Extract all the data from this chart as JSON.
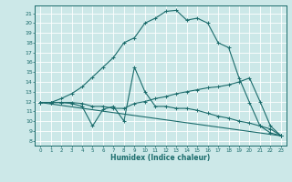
{
  "title": "",
  "xlabel": "Humidex (Indice chaleur)",
  "bg_color": "#cce8e8",
  "grid_color": "#ffffff",
  "line_color": "#1a6b6b",
  "xlim": [
    -0.5,
    23.5
  ],
  "ylim": [
    7.5,
    21.8
  ],
  "yticks": [
    8,
    9,
    10,
    11,
    12,
    13,
    14,
    15,
    16,
    17,
    18,
    19,
    20,
    21
  ],
  "xticks": [
    0,
    1,
    2,
    3,
    4,
    5,
    6,
    7,
    8,
    9,
    10,
    11,
    12,
    13,
    14,
    15,
    16,
    17,
    18,
    19,
    20,
    21,
    22,
    23
  ],
  "curve1_x": [
    0,
    1,
    2,
    3,
    4,
    5,
    6,
    7,
    8,
    9,
    10,
    11,
    12,
    13,
    14,
    15,
    16,
    17,
    18,
    19,
    20,
    21,
    22,
    23
  ],
  "curve1_y": [
    11.9,
    11.9,
    12.3,
    12.8,
    13.5,
    14.5,
    15.5,
    16.5,
    18.0,
    18.5,
    20.0,
    20.5,
    21.2,
    21.3,
    20.3,
    20.5,
    20.0,
    18.0,
    17.5,
    14.4,
    11.9,
    9.5,
    8.8,
    8.5
  ],
  "curve2_x": [
    0,
    1,
    2,
    3,
    4,
    5,
    6,
    7,
    8,
    9,
    10,
    11,
    12,
    13,
    14,
    15,
    16,
    17,
    18,
    19,
    20,
    21,
    22,
    23
  ],
  "curve2_y": [
    11.9,
    11.9,
    11.9,
    11.9,
    11.8,
    11.5,
    11.5,
    11.3,
    11.3,
    11.8,
    12.0,
    12.3,
    12.5,
    12.8,
    13.0,
    13.2,
    13.4,
    13.5,
    13.7,
    14.0,
    14.4,
    12.0,
    9.5,
    8.5
  ],
  "curve3_x": [
    0,
    1,
    2,
    3,
    4,
    5,
    6,
    7,
    8,
    9,
    10,
    11,
    12,
    13,
    14,
    15,
    16,
    17,
    18,
    19,
    20,
    21,
    22,
    23
  ],
  "curve3_y": [
    11.9,
    11.9,
    11.9,
    11.8,
    11.5,
    9.5,
    11.2,
    11.5,
    10.0,
    15.5,
    13.0,
    11.5,
    11.5,
    11.3,
    11.3,
    11.1,
    10.8,
    10.5,
    10.3,
    10.0,
    9.8,
    9.5,
    9.2,
    8.5
  ],
  "curve4_x": [
    0,
    23
  ],
  "curve4_y": [
    11.9,
    8.5
  ]
}
